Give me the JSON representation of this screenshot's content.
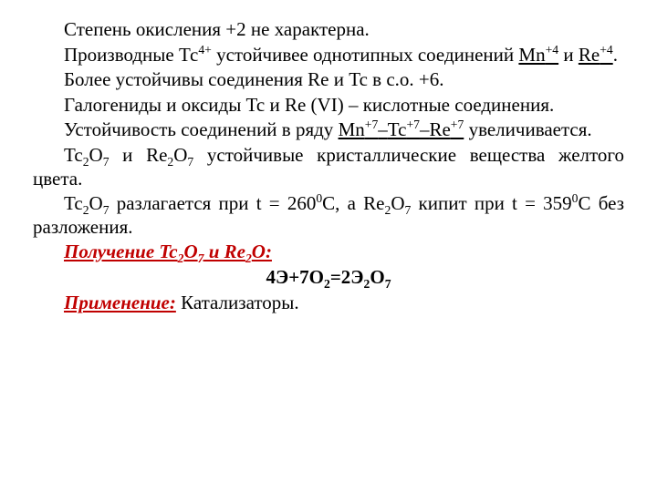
{
  "style": {
    "background_color": "#ffffff",
    "text_color": "#000000",
    "accent_color": "#c00000",
    "font_family": "Times New Roman",
    "font_size_pt": 16,
    "underline_color": "#000000"
  },
  "p1": {
    "t1": "Степень окисления +2  не характерна."
  },
  "p2": {
    "t1": "Производные Тс",
    "s1": "4+",
    "t2": " устойчивее однотипных соединений ",
    "u1a": "Mn",
    "u1_s": "+4",
    "t3": " и ",
    "u2a": "Re",
    "u2_s": "+4",
    "t4": "."
  },
  "p3": {
    "t1": "Более устойчивы соединения Re и Tc в с.о. +6."
  },
  "p4": {
    "t1": "Галогениды и оксиды Tc и Re (VI) – кислотные соединения."
  },
  "p5": {
    "t1": "Устойчивость соединений в ряду ",
    "u1a": "Mn",
    "u1s": "+7",
    "d1": "–",
    "u2a": "Tc",
    "u2s": "+7",
    "d2": "–",
    "u3a": "Re",
    "u3s": "+7",
    "t2": "  увеличивается."
  },
  "p6": {
    "t1": "Tc",
    "s1": "2",
    "t2": "O",
    "s2": "7",
    "t3": " и Re",
    "s3": "2",
    "t4": "O",
    "s4": "7",
    "t5": " устойчивые кристаллические вещества желтого цвета."
  },
  "p7": {
    "t1": "Tc",
    "s1": "2",
    "t2": "O",
    "s2": "7",
    "t3": " разлагается при t = 260",
    "d1": "0",
    "t4": "С, а Re",
    "s3": "2",
    "t5": "O",
    "s4": "7",
    "t6": " кипит при t = 359",
    "d2": "0",
    "t7": "С без разложения."
  },
  "p8": {
    "h1": "Получение Tc",
    "hs1": "2",
    "h2": "O",
    "hs2": "7",
    "h3": " и Re",
    "hs3": "2",
    "h4": "O:"
  },
  "p9": {
    "e1": "4Э+7О",
    "es1": "2",
    "e2": "=2Э",
    "es2": "2",
    "e3": "О",
    "es3": "7"
  },
  "p10": {
    "h1": "Применение:",
    "t1": " Катализаторы."
  }
}
